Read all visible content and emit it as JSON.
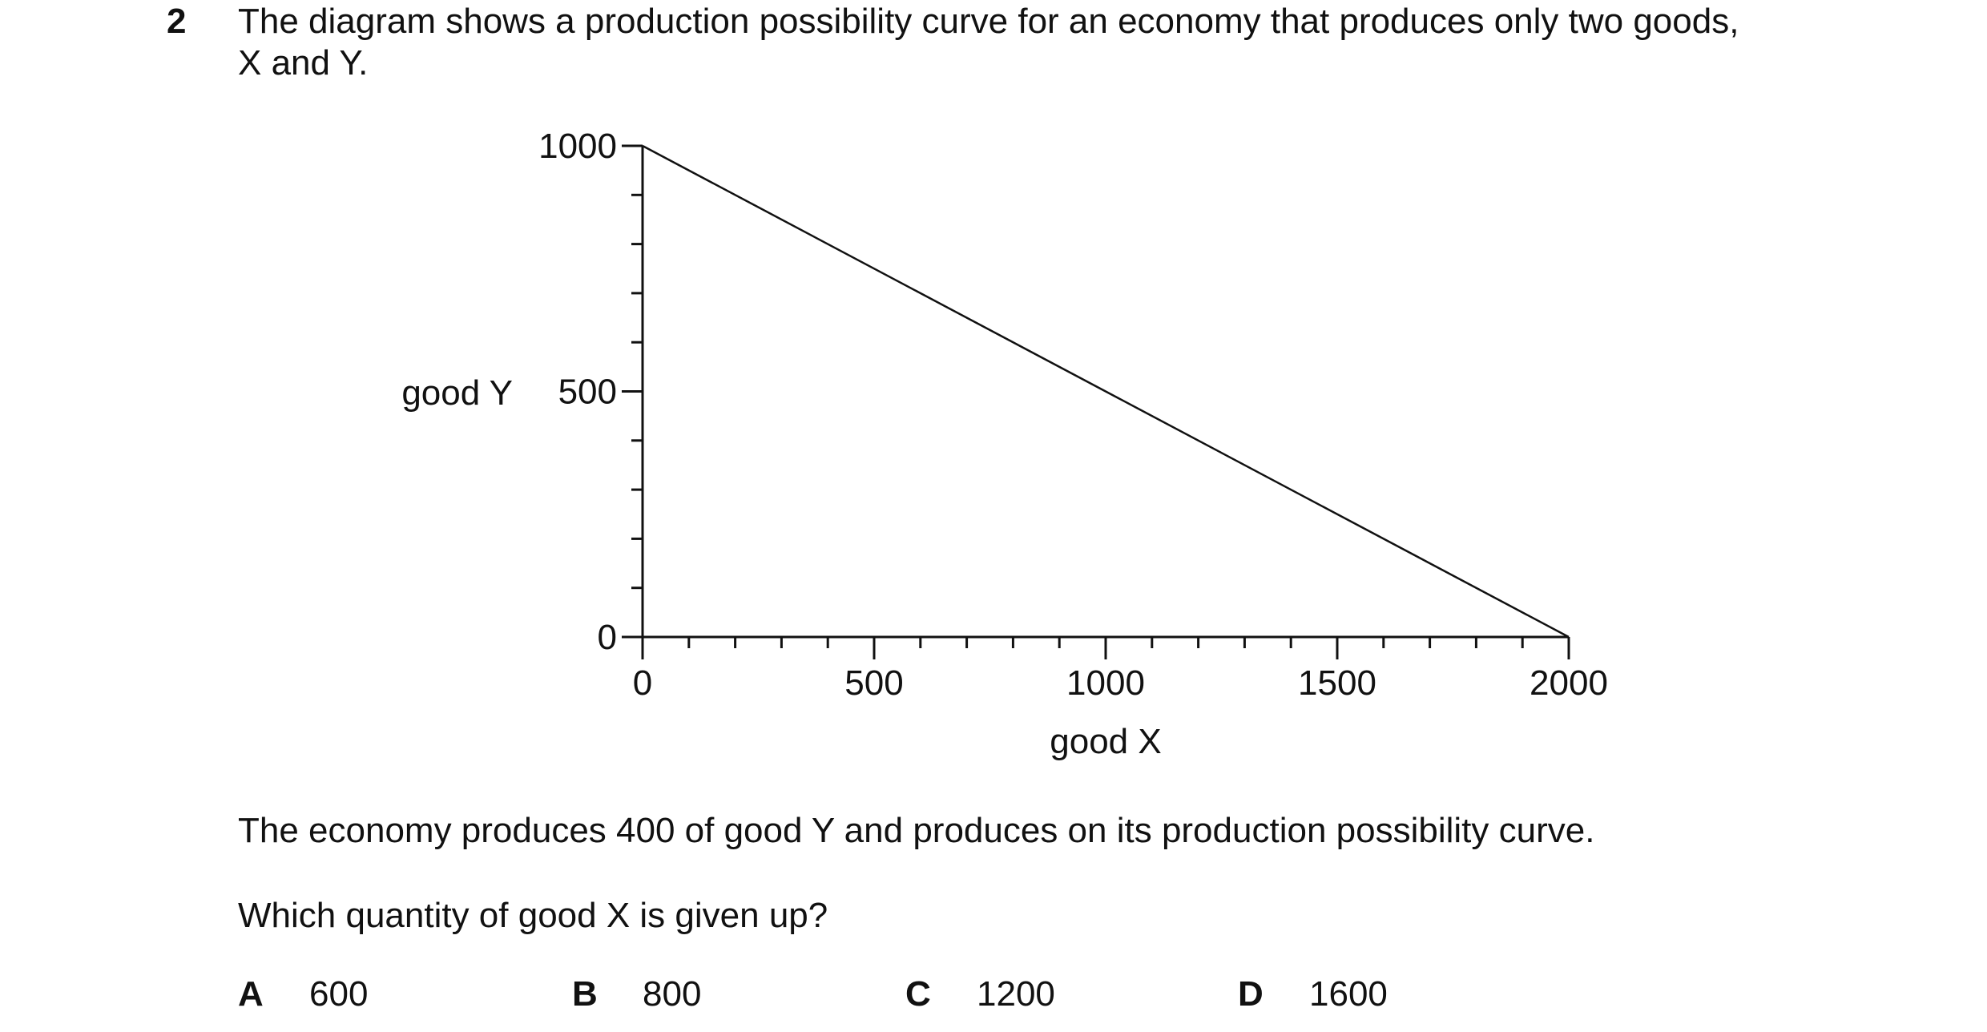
{
  "question": {
    "number": "2",
    "stem_line1": "The diagram shows a production possibility curve for an economy that produces only two goods,",
    "stem_line2": "X and Y.",
    "statement": "The economy produces 400 of good Y and produces on its production possibility curve.",
    "prompt": "Which quantity of good X is given up?"
  },
  "chart_data": {
    "type": "line",
    "xlabel": "good X",
    "ylabel": "good Y",
    "xlim": [
      0,
      2000
    ],
    "ylim": [
      0,
      1000
    ],
    "x_tick_labels": [
      "0",
      "500",
      "1000",
      "1500",
      "2000"
    ],
    "y_tick_labels": [
      "0",
      "500",
      "1000"
    ],
    "x_minor_step": 100,
    "y_minor_step": 100,
    "grid": false,
    "series": [
      {
        "x": [
          0,
          2000
        ],
        "y": [
          1000,
          0
        ]
      }
    ]
  },
  "options": [
    {
      "letter": "A",
      "value": "600"
    },
    {
      "letter": "B",
      "value": "800"
    },
    {
      "letter": "C",
      "value": "1200"
    },
    {
      "letter": "D",
      "value": "1600"
    }
  ]
}
